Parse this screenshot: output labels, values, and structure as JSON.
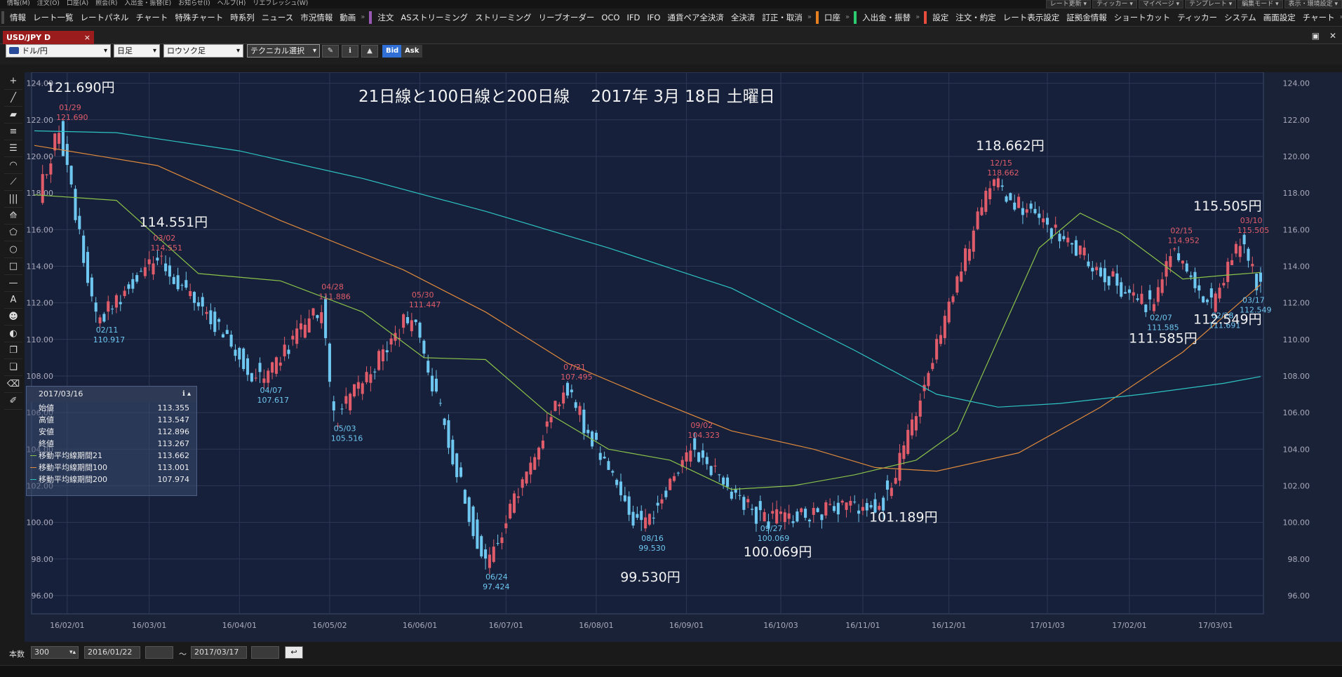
{
  "menu": {
    "items": [
      "情報(M)",
      "注文(O)",
      "口座(A)",
      "照会(R)",
      "入出金・振替(E)",
      "お知らせ(I)",
      "ヘルプ(H)",
      "リエフレッシュ(W)"
    ],
    "right": [
      "レート更新 ▾",
      "ティッカー ▾",
      "マイページ ▾",
      "テンプレート ▾",
      "編集モード ▾",
      "表示・環境設定 ▾"
    ]
  },
  "toolbar": {
    "groups": [
      {
        "color": "#4a4a4a",
        "items": [
          "情報",
          "レート一覧",
          "レートパネル",
          "チャート",
          "特殊チャート",
          "時系列",
          "ニュース",
          "市況情報",
          "動画"
        ]
      },
      {
        "color": "#9b59b6",
        "items": [
          "注文",
          "ASストリーミング",
          "ストリーミング",
          "リーブオーダー",
          "OCO",
          "IFD",
          "IFO",
          "通貨ペア全決済",
          "全決済",
          "訂正・取消"
        ]
      },
      {
        "color": "#e67e22",
        "items": [
          "口座"
        ]
      },
      {
        "color": "#2ecc71",
        "items": [
          "入出金・振替"
        ]
      },
      {
        "color": "#e74c3c",
        "items": [
          "設定",
          "注文・約定",
          "レート表示設定",
          "証拠金情報",
          "ショートカット",
          "ティッカー",
          "システム",
          "画面設定",
          "チャート"
        ]
      }
    ]
  },
  "tab": {
    "label": "USD/JPY D",
    "close": "×"
  },
  "controls": {
    "pair": "ドル/円",
    "period": "日足",
    "chart_style": "ロウソク足",
    "technical": "テクニカル選択",
    "bid": "Bid",
    "ask": "Ask"
  },
  "info_panel": {
    "date": "2017/03/16",
    "rows": [
      {
        "label": "始値",
        "value": "113.355"
      },
      {
        "label": "高値",
        "value": "113.547"
      },
      {
        "label": "安値",
        "value": "112.896"
      },
      {
        "label": "終値",
        "value": "113.267"
      },
      {
        "label": "移動平均線期間21",
        "value": "113.662",
        "color": "#8bc34a"
      },
      {
        "label": "移動平均線期間100",
        "value": "113.001",
        "color": "#e08a3c"
      },
      {
        "label": "移動平均線期間200",
        "value": "107.974",
        "color": "#2ec4c4"
      }
    ]
  },
  "bottom": {
    "count_label": "本数",
    "count_value": "300",
    "from": "2016/01/22",
    "tilde": "～",
    "to": "2017/03/17"
  },
  "chart_data": {
    "type": "candlestick",
    "title": "21日線と100日線と200日線　 2017年 3月 18日 土曜日",
    "y_range": [
      95.0,
      124.6
    ],
    "y_ticks": [
      "124.00",
      "122.00",
      "120.00",
      "118.00",
      "116.00",
      "114.00",
      "112.00",
      "110.00",
      "108.00",
      "106.00",
      "104.00",
      "102.00",
      "100.00",
      "98.00",
      "96.00"
    ],
    "x_ticks": [
      "16/02/01",
      "16/03/01",
      "16/04/01",
      "16/05/02",
      "16/06/01",
      "16/07/01",
      "16/08/01",
      "16/09/01",
      "16/10/03",
      "16/11/01",
      "16/12/01",
      "17/01/03",
      "17/02/01",
      "17/03/01"
    ],
    "bars": 300,
    "up_color": "#e05c6a",
    "down_color": "#6ec7f0",
    "anchors": [
      {
        "date": "01/22",
        "value": 117.8
      },
      {
        "date": "01/29",
        "value": 121.69,
        "type": "high"
      },
      {
        "date": "02/11",
        "value": 110.917,
        "type": "low"
      },
      {
        "date": "03/02",
        "value": 114.551,
        "type": "high"
      },
      {
        "date": "03/20",
        "value": 111.5
      },
      {
        "date": "04/07",
        "value": 107.617,
        "type": "low"
      },
      {
        "date": "04/28",
        "value": 111.886,
        "type": "high"
      },
      {
        "date": "05/03",
        "value": 105.516,
        "type": "low"
      },
      {
        "date": "05/30",
        "value": 111.447,
        "type": "high"
      },
      {
        "date": "06/24",
        "value": 97.424,
        "type": "low"
      },
      {
        "date": "07/21",
        "value": 107.495,
        "type": "high"
      },
      {
        "date": "08/16",
        "value": 99.53,
        "type": "low"
      },
      {
        "date": "09/02",
        "value": 104.323,
        "type": "high"
      },
      {
        "date": "09/27",
        "value": 100.069,
        "type": "low"
      },
      {
        "date": "11/09",
        "value": 101.189,
        "type": "low"
      },
      {
        "date": "12/15",
        "value": 118.662,
        "type": "high"
      },
      {
        "date": "02/07",
        "value": 111.585,
        "type": "low"
      },
      {
        "date": "02/15",
        "value": 114.952,
        "type": "high"
      },
      {
        "date": "02/28",
        "value": 111.691,
        "type": "low"
      },
      {
        "date": "03/10",
        "value": 115.505,
        "type": "high"
      },
      {
        "date": "03/17",
        "value": 112.549,
        "type": "low"
      }
    ],
    "small_labels": [
      {
        "date": "01/29",
        "value": "121.690",
        "type": "high"
      },
      {
        "date": "02/11",
        "value": "110.917",
        "type": "low"
      },
      {
        "date": "03/02",
        "value": "114.551",
        "type": "high"
      },
      {
        "date": "04/07",
        "value": "107.617",
        "type": "low"
      },
      {
        "date": "04/28",
        "value": "111.886",
        "type": "high"
      },
      {
        "date": "05/03",
        "value": "105.516",
        "type": "low"
      },
      {
        "date": "05/30",
        "value": "111.447",
        "type": "high"
      },
      {
        "date": "06/24",
        "value": "97.424",
        "type": "low"
      },
      {
        "date": "07/21",
        "value": "107.495",
        "type": "high"
      },
      {
        "date": "08/16",
        "value": "99.530",
        "type": "low"
      },
      {
        "date": "09/02",
        "value": "104.323",
        "type": "high"
      },
      {
        "date": "09/27",
        "value": "100.069",
        "type": "low"
      },
      {
        "date": "12/15",
        "value": "118.662",
        "type": "high"
      },
      {
        "date": "02/07",
        "value": "111.585",
        "type": "low"
      },
      {
        "date": "02/15",
        "value": "114.952",
        "type": "high"
      },
      {
        "date": "02/28",
        "value": "111.691",
        "type": "low"
      },
      {
        "date": "03/10",
        "value": "115.505",
        "type": "high"
      },
      {
        "date": "03/17",
        "value": "112.549",
        "type": "low"
      }
    ],
    "big_labels": [
      "121.690円",
      "114.551円",
      "99.530円",
      "100.069円",
      "101.189円",
      "118.662円",
      "111.585円",
      "115.505円",
      "112.549円"
    ],
    "ma": [
      {
        "name": "移動平均線期間21",
        "color": "#8bc34a",
        "points": [
          [
            0,
            117.9
          ],
          [
            20,
            117.6
          ],
          [
            40,
            113.6
          ],
          [
            60,
            113.2
          ],
          [
            80,
            111.5
          ],
          [
            95,
            109.0
          ],
          [
            110,
            108.9
          ],
          [
            125,
            106.0
          ],
          [
            140,
            104.0
          ],
          [
            155,
            103.4
          ],
          [
            170,
            101.8
          ],
          [
            185,
            102.0
          ],
          [
            200,
            102.6
          ],
          [
            215,
            103.4
          ],
          [
            225,
            105.0
          ],
          [
            235,
            110.0
          ],
          [
            245,
            115.0
          ],
          [
            255,
            116.9
          ],
          [
            265,
            115.8
          ],
          [
            280,
            113.3
          ],
          [
            290,
            113.5
          ],
          [
            299,
            113.66
          ]
        ]
      },
      {
        "name": "移動平均線期間100",
        "color": "#e08a3c",
        "points": [
          [
            0,
            120.6
          ],
          [
            30,
            119.5
          ],
          [
            60,
            116.5
          ],
          [
            90,
            113.8
          ],
          [
            110,
            111.5
          ],
          [
            130,
            108.7
          ],
          [
            150,
            106.8
          ],
          [
            170,
            105.0
          ],
          [
            190,
            104.0
          ],
          [
            205,
            103.0
          ],
          [
            220,
            102.8
          ],
          [
            240,
            103.8
          ],
          [
            260,
            106.3
          ],
          [
            280,
            109.3
          ],
          [
            299,
            113.0
          ]
        ]
      },
      {
        "name": "移動平均線期間200",
        "color": "#2ec4c4",
        "points": [
          [
            0,
            121.4
          ],
          [
            20,
            121.3
          ],
          [
            50,
            120.3
          ],
          [
            80,
            118.8
          ],
          [
            110,
            117.0
          ],
          [
            140,
            115.0
          ],
          [
            170,
            112.8
          ],
          [
            200,
            109.4
          ],
          [
            220,
            107.0
          ],
          [
            235,
            106.3
          ],
          [
            250,
            106.5
          ],
          [
            270,
            107.0
          ],
          [
            290,
            107.6
          ],
          [
            299,
            107.97
          ]
        ]
      }
    ]
  }
}
